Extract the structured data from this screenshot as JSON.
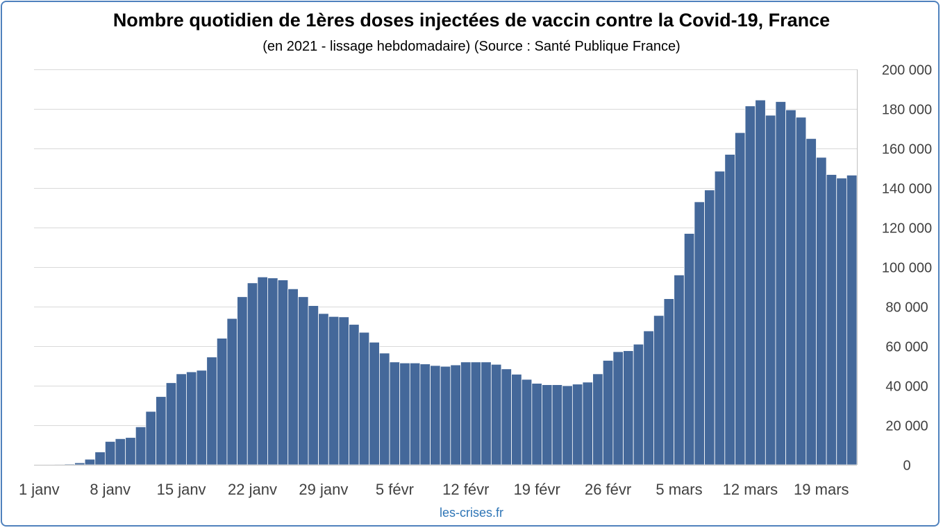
{
  "title": "Nombre quotidien de 1ères doses injectées de vaccin contre la Covid-19, France",
  "subtitle": "(en 2021 - lissage hebdomadaire) (Source : Santé Publique France)",
  "source_credit": "les-crises.fr",
  "colors": {
    "bar": "#44689a",
    "frame": "#4f81bd",
    "grid": "#d9d9d9",
    "credit": "#2e75b6"
  },
  "chart_data": {
    "type": "bar",
    "title": "Nombre quotidien de 1ères doses injectées de vaccin contre la Covid-19, France",
    "subtitle": "(en 2021 - lissage hebdomadaire) (Source : Santé Publique France)",
    "xlabel": "",
    "ylabel": "",
    "ylim": [
      0,
      200000
    ],
    "y_axis_position": "right",
    "grid": true,
    "legend": "none",
    "x_tick_labels": [
      "1 janv",
      "8 janv",
      "15 janv",
      "22 janv",
      "29 janv",
      "5 févr",
      "12 févr",
      "19 févr",
      "26 févr",
      "5 mars",
      "12 mars",
      "19 mars"
    ],
    "y_tick_labels": [
      "0",
      "20 000",
      "40 000",
      "60 000",
      "80 000",
      "100 000",
      "120 000",
      "140 000",
      "160 000",
      "180 000",
      "200 000"
    ],
    "x_start": "2021-01-01",
    "x_end": "2021-03-22",
    "categories": [
      "2021-01-01",
      "2021-01-02",
      "2021-01-03",
      "2021-01-04",
      "2021-01-05",
      "2021-01-06",
      "2021-01-07",
      "2021-01-08",
      "2021-01-09",
      "2021-01-10",
      "2021-01-11",
      "2021-01-12",
      "2021-01-13",
      "2021-01-14",
      "2021-01-15",
      "2021-01-16",
      "2021-01-17",
      "2021-01-18",
      "2021-01-19",
      "2021-01-20",
      "2021-01-21",
      "2021-01-22",
      "2021-01-23",
      "2021-01-24",
      "2021-01-25",
      "2021-01-26",
      "2021-01-27",
      "2021-01-28",
      "2021-01-29",
      "2021-01-30",
      "2021-01-31",
      "2021-02-01",
      "2021-02-02",
      "2021-02-03",
      "2021-02-04",
      "2021-02-05",
      "2021-02-06",
      "2021-02-07",
      "2021-02-08",
      "2021-02-09",
      "2021-02-10",
      "2021-02-11",
      "2021-02-12",
      "2021-02-13",
      "2021-02-14",
      "2021-02-15",
      "2021-02-16",
      "2021-02-17",
      "2021-02-18",
      "2021-02-19",
      "2021-02-20",
      "2021-02-21",
      "2021-02-22",
      "2021-02-23",
      "2021-02-24",
      "2021-02-25",
      "2021-02-26",
      "2021-02-27",
      "2021-02-28",
      "2021-03-01",
      "2021-03-02",
      "2021-03-03",
      "2021-03-04",
      "2021-03-05",
      "2021-03-06",
      "2021-03-07",
      "2021-03-08",
      "2021-03-09",
      "2021-03-10",
      "2021-03-11",
      "2021-03-12",
      "2021-03-13",
      "2021-03-14",
      "2021-03-15",
      "2021-03-16",
      "2021-03-17",
      "2021-03-18",
      "2021-03-19",
      "2021-03-20",
      "2021-03-21",
      "2021-03-22"
    ],
    "values": [
      100,
      200,
      300,
      400,
      1000,
      2800,
      6500,
      11800,
      13200,
      13800,
      19200,
      27000,
      34500,
      41500,
      46000,
      47000,
      47800,
      54500,
      64000,
      74000,
      85000,
      92000,
      95000,
      94500,
      93500,
      89000,
      85000,
      80500,
      76500,
      75000,
      74800,
      71000,
      67000,
      62000,
      56500,
      52000,
      51500,
      51500,
      51000,
      50200,
      49800,
      50500,
      52000,
      52000,
      52000,
      50800,
      48500,
      45800,
      43200,
      41200,
      40500,
      40500,
      40000,
      40800,
      41800,
      46000,
      52800,
      57200,
      57700,
      61000,
      67700,
      75500,
      84000,
      96000,
      117000,
      133000,
      139000,
      148500,
      157000,
      168000,
      181500,
      184500,
      176800,
      183700,
      179500,
      175800,
      165000,
      155500,
      146800,
      145000,
      146500
    ]
  }
}
